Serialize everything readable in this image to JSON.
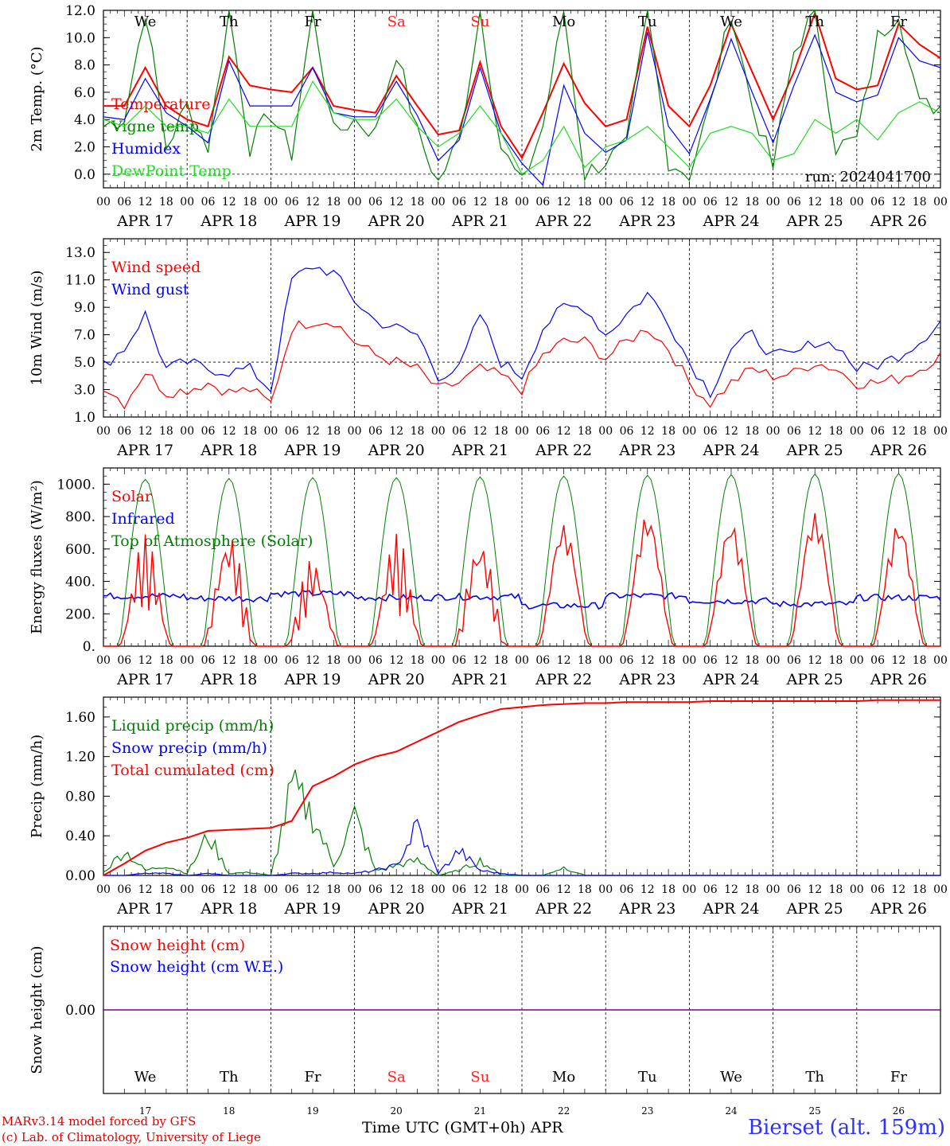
{
  "days": [
    "APR 17",
    "APR 18",
    "APR 19",
    "APR 20",
    "APR 21",
    "APR 22",
    "APR 23",
    "APR 24",
    "APR 25",
    "APR 26"
  ],
  "weekdays": [
    {
      "label": "We",
      "color": "#000000"
    },
    {
      "label": "Th",
      "color": "#000000"
    },
    {
      "label": "Fr",
      "color": "#000000"
    },
    {
      "label": "Sa",
      "color": "#ff2020"
    },
    {
      "label": "Su",
      "color": "#ff2020"
    },
    {
      "label": "Mo",
      "color": "#000000"
    },
    {
      "label": "Tu",
      "color": "#000000"
    },
    {
      "label": "We",
      "color": "#000000"
    },
    {
      "label": "Th",
      "color": "#000000"
    },
    {
      "label": "Fr",
      "color": "#000000"
    }
  ],
  "day_numbers": [
    "17",
    "18",
    "19",
    "20",
    "21",
    "22",
    "23",
    "24",
    "25",
    "26"
  ],
  "hour_ticks": [
    "00",
    "06",
    "12",
    "18"
  ],
  "hour_end": "00",
  "colors": {
    "red": "#ff0000",
    "green": "#008000",
    "blue": "#0000ff",
    "lightgreen": "#22dd22",
    "purple": "#800080"
  },
  "footer": {
    "model": "MARv3.14 model forced by GFS",
    "credit": "(c) Lab. of Climatology, University of Liege",
    "xtitle": "Time UTC (GMT+0h) APR",
    "station": "Bierset (alt. 159m)"
  },
  "chart_data": [
    {
      "type": "line",
      "ylabel": "2m Temp. (°C)",
      "ylim": [
        -1,
        12
      ],
      "yticks": [
        "0.0",
        "2.0",
        "4.0",
        "6.0",
        "8.0",
        "10.0",
        "12.0"
      ],
      "run_label": "run: 2024041700",
      "reference_line": 0,
      "series": [
        {
          "name": "Temperature",
          "color": "#ff0000",
          "hours": [
            0,
            6,
            12,
            18,
            24,
            30,
            36,
            42,
            48,
            54,
            60,
            66,
            72,
            78,
            84,
            90,
            96,
            102,
            108,
            114,
            120,
            126,
            132,
            138,
            144,
            150,
            156,
            162,
            168,
            174,
            180,
            186,
            192,
            198,
            204,
            210,
            216,
            222,
            228,
            234,
            240
          ],
          "values": [
            5.0,
            5.0,
            7.8,
            5.0,
            4.0,
            3.5,
            8.6,
            6.5,
            6.2,
            6.0,
            7.8,
            5.0,
            4.7,
            4.5,
            7.2,
            5.0,
            2.9,
            3.2,
            8.2,
            3.5,
            1.2,
            4.5,
            8.1,
            5.2,
            3.5,
            4.0,
            10.8,
            5.0,
            3.5,
            6.5,
            11.0,
            7.5,
            4.0,
            7.5,
            11.8,
            7.0,
            6.2,
            6.5,
            11.0,
            9.5,
            8.5
          ]
        },
        {
          "name": "Vigne temp",
          "color": "#008000",
          "hours": [
            0,
            6,
            12,
            18,
            24,
            30,
            36,
            42,
            48,
            54,
            60,
            66,
            72,
            78,
            84,
            90,
            96,
            102,
            108,
            114,
            120,
            126,
            132,
            138,
            144,
            150,
            156,
            162,
            168,
            174,
            180,
            186,
            192,
            198,
            204,
            210,
            216,
            222,
            228,
            234,
            240
          ],
          "values": [
            3.5,
            4.2,
            12.0,
            2.0,
            5.0,
            2.0,
            12.0,
            2.0,
            4.5,
            1.5,
            12.0,
            3.0,
            4.0,
            3.0,
            9.0,
            3.0,
            -0.6,
            2.5,
            12.0,
            2.0,
            -0.8,
            3.5,
            12.0,
            0.0,
            1.0,
            2.0,
            12.0,
            1.0,
            0.0,
            5.0,
            12.0,
            5.0,
            0.5,
            9.0,
            12.0,
            2.0,
            2.5,
            10.0,
            12.0,
            5.0,
            5.0
          ]
        },
        {
          "name": "Humidex",
          "color": "#0000ff",
          "hours": [
            0,
            6,
            12,
            18,
            24,
            30,
            36,
            42,
            48,
            54,
            60,
            66,
            72,
            78,
            84,
            90,
            96,
            102,
            108,
            114,
            120,
            126,
            132,
            138,
            144,
            150,
            156,
            162,
            168,
            174,
            180,
            186,
            192,
            198,
            204,
            210,
            216,
            222,
            228,
            234,
            240
          ],
          "values": [
            4.2,
            4.0,
            7.0,
            4.5,
            3.5,
            2.3,
            8.3,
            5.0,
            5.0,
            5.0,
            7.8,
            4.5,
            4.2,
            4.2,
            6.8,
            4.3,
            1.0,
            2.5,
            7.8,
            3.0,
            0.8,
            -0.8,
            6.5,
            3.0,
            1.6,
            2.5,
            10.4,
            3.5,
            1.5,
            5.5,
            9.9,
            6.0,
            2.3,
            6.5,
            10.2,
            6.0,
            5.3,
            5.8,
            10.0,
            8.3,
            7.8
          ]
        },
        {
          "name": "DewPoint Temp",
          "color": "#22dd22",
          "hours": [
            0,
            6,
            12,
            18,
            24,
            30,
            36,
            42,
            48,
            54,
            60,
            66,
            72,
            78,
            84,
            90,
            96,
            102,
            108,
            114,
            120,
            126,
            132,
            138,
            144,
            150,
            156,
            162,
            168,
            174,
            180,
            186,
            192,
            198,
            204,
            210,
            216,
            222,
            228,
            234,
            240
          ],
          "values": [
            4.0,
            3.5,
            5.0,
            3.5,
            3.5,
            3.0,
            5.5,
            3.5,
            3.5,
            3.5,
            6.8,
            4.5,
            4.0,
            4.0,
            5.5,
            3.5,
            2.0,
            3.0,
            5.0,
            3.0,
            0.0,
            1.0,
            3.5,
            0.5,
            2.0,
            2.5,
            3.5,
            2.0,
            0.5,
            3.0,
            3.5,
            3.0,
            1.0,
            1.5,
            4.0,
            3.0,
            4.0,
            2.5,
            4.5,
            5.3,
            4.5
          ]
        }
      ]
    },
    {
      "type": "line",
      "ylabel": "10m Wind (m/s)",
      "ylim": [
        1,
        14
      ],
      "yticks": [
        "1.0",
        "3.0",
        "5.0",
        "7.0",
        "9.0",
        "11.0",
        "13.0"
      ],
      "reference_line": 5,
      "series": [
        {
          "name": "Wind speed",
          "color": "#ff0000",
          "hours": [
            0,
            6,
            12,
            18,
            24,
            30,
            36,
            42,
            48,
            54,
            60,
            66,
            72,
            78,
            84,
            90,
            96,
            102,
            108,
            114,
            120,
            126,
            132,
            138,
            144,
            150,
            156,
            162,
            168,
            174,
            180,
            186,
            192,
            198,
            204,
            210,
            216,
            222,
            228,
            234,
            240
          ],
          "values": [
            3.3,
            2.0,
            4.3,
            2.8,
            3.0,
            3.5,
            2.8,
            3.0,
            2.0,
            7.5,
            8.0,
            8.0,
            6.5,
            5.5,
            5.0,
            4.5,
            3.0,
            3.5,
            4.5,
            4.0,
            3.0,
            5.5,
            6.5,
            6.5,
            5.3,
            6.5,
            7.5,
            6.0,
            3.5,
            2.0,
            3.5,
            4.5,
            4.0,
            4.2,
            5.0,
            4.5,
            3.5,
            3.5,
            3.8,
            4.5,
            5.5
          ]
        },
        {
          "name": "Wind gust",
          "color": "#0000ff",
          "hours": [
            0,
            6,
            12,
            18,
            24,
            30,
            36,
            42,
            48,
            54,
            60,
            66,
            72,
            78,
            84,
            90,
            96,
            102,
            108,
            114,
            120,
            126,
            132,
            138,
            144,
            150,
            156,
            162,
            168,
            174,
            180,
            186,
            192,
            198,
            204,
            210,
            216,
            222,
            228,
            234,
            240
          ],
          "values": [
            4.8,
            6.0,
            8.5,
            4.5,
            5.0,
            4.5,
            4.3,
            4.5,
            3.0,
            11.0,
            12.0,
            11.5,
            9.5,
            8.0,
            7.5,
            7.0,
            4.0,
            4.5,
            8.5,
            5.0,
            4.0,
            7.5,
            9.0,
            9.0,
            7.0,
            8.5,
            10.0,
            8.0,
            5.0,
            2.8,
            6.0,
            7.0,
            5.5,
            5.5,
            6.5,
            6.3,
            4.5,
            4.8,
            5.5,
            6.5,
            8.0
          ]
        }
      ]
    },
    {
      "type": "line",
      "ylabel": "Energy fluxes (W/m²)",
      "ylim": [
        0,
        1100
      ],
      "yticks": [
        "0.",
        "200.",
        "400.",
        "600.",
        "800.",
        "1000."
      ],
      "series": [
        {
          "name": "Solar",
          "color": "#ff0000",
          "peaks": [
            690,
            730,
            560,
            700,
            700,
            750,
            810,
            760,
            820,
            760
          ]
        },
        {
          "name": "Infrared",
          "color": "#0000ff",
          "values_by_day": [
            310,
            295,
            325,
            300,
            305,
            250,
            310,
            280,
            260,
            300
          ]
        },
        {
          "name": "Top of Atmosphere (Solar)",
          "color": "#008000",
          "peaks": [
            1030,
            1035,
            1040,
            1040,
            1045,
            1050,
            1055,
            1058,
            1062,
            1065
          ]
        }
      ]
    },
    {
      "type": "line",
      "ylabel": "Precip (mm/h)",
      "ylim": [
        0,
        1.8
      ],
      "yticks": [
        "0.00",
        "0.40",
        "0.80",
        "1.20",
        "1.60"
      ],
      "series": [
        {
          "name": "Liquid precip (mm/h)",
          "color": "#008000",
          "hours": [
            0,
            6,
            12,
            18,
            24,
            30,
            36,
            42,
            48,
            54,
            60,
            66,
            72,
            78,
            84,
            90,
            96,
            102,
            108,
            114,
            120,
            126,
            132,
            138,
            144,
            150,
            156,
            162,
            168,
            174,
            180,
            186,
            192,
            198,
            204,
            210,
            216,
            222,
            228,
            234,
            240
          ],
          "values": [
            0.03,
            0.25,
            0.05,
            0.1,
            0.02,
            0.4,
            0.02,
            0.03,
            0.0,
            0.88,
            0.6,
            0.1,
            0.6,
            0.05,
            0.1,
            0.15,
            0.0,
            0.05,
            0.15,
            0.0,
            0.0,
            0.0,
            0.08,
            0.0,
            0.0,
            0.0,
            0.0,
            0.0,
            0.0,
            0.0,
            0.0,
            0.0,
            0.0,
            0.0,
            0.0,
            0.0,
            0.0,
            0.0,
            0.0,
            0.0,
            0.0
          ]
        },
        {
          "name": "Snow precip (mm/h)",
          "color": "#0000ff",
          "hours": [
            0,
            6,
            12,
            18,
            24,
            30,
            36,
            42,
            48,
            54,
            60,
            66,
            72,
            78,
            84,
            90,
            96,
            102,
            108,
            114,
            120,
            126,
            132,
            138,
            144,
            150,
            156,
            162,
            168,
            174,
            180,
            186,
            192,
            198,
            204,
            210,
            216,
            222,
            228,
            234,
            240
          ],
          "values": [
            0.0,
            0.0,
            0.02,
            0.02,
            0.0,
            0.02,
            0.0,
            0.0,
            0.0,
            0.02,
            0.02,
            0.03,
            0.02,
            0.05,
            0.1,
            0.5,
            0.02,
            0.25,
            0.05,
            0.02,
            0.0,
            0.0,
            0.0,
            0.0,
            0.0,
            0.0,
            0.0,
            0.0,
            0.0,
            0.0,
            0.0,
            0.0,
            0.0,
            0.0,
            0.0,
            0.0,
            0.0,
            0.0,
            0.0,
            0.0,
            0.0
          ]
        },
        {
          "name": "Total cumulated (cm)",
          "color": "#ff0000",
          "hours": [
            0,
            6,
            12,
            18,
            24,
            30,
            36,
            42,
            48,
            54,
            60,
            66,
            72,
            78,
            84,
            90,
            96,
            102,
            108,
            114,
            120,
            126,
            132,
            138,
            144,
            150,
            156,
            162,
            168,
            174,
            180,
            186,
            192,
            198,
            204,
            210,
            216,
            222,
            228,
            234,
            240
          ],
          "values": [
            0.0,
            0.12,
            0.25,
            0.33,
            0.38,
            0.45,
            0.46,
            0.47,
            0.48,
            0.55,
            0.9,
            1.0,
            1.12,
            1.2,
            1.25,
            1.35,
            1.45,
            1.55,
            1.62,
            1.68,
            1.7,
            1.72,
            1.73,
            1.74,
            1.74,
            1.75,
            1.75,
            1.75,
            1.75,
            1.76,
            1.76,
            1.76,
            1.76,
            1.76,
            1.76,
            1.76,
            1.76,
            1.77,
            1.77,
            1.77,
            1.77
          ]
        }
      ]
    },
    {
      "type": "line",
      "ylabel": "Snow height (cm)",
      "ylim": [
        -1,
        1
      ],
      "yticks": [
        "0.00"
      ],
      "series": [
        {
          "name": "Snow height (cm)",
          "color": "#ff0000",
          "values": [
            0,
            0
          ]
        },
        {
          "name": "Snow height (cm W.E.)",
          "color": "#0000ff",
          "values": [
            0,
            0
          ]
        }
      ]
    }
  ]
}
